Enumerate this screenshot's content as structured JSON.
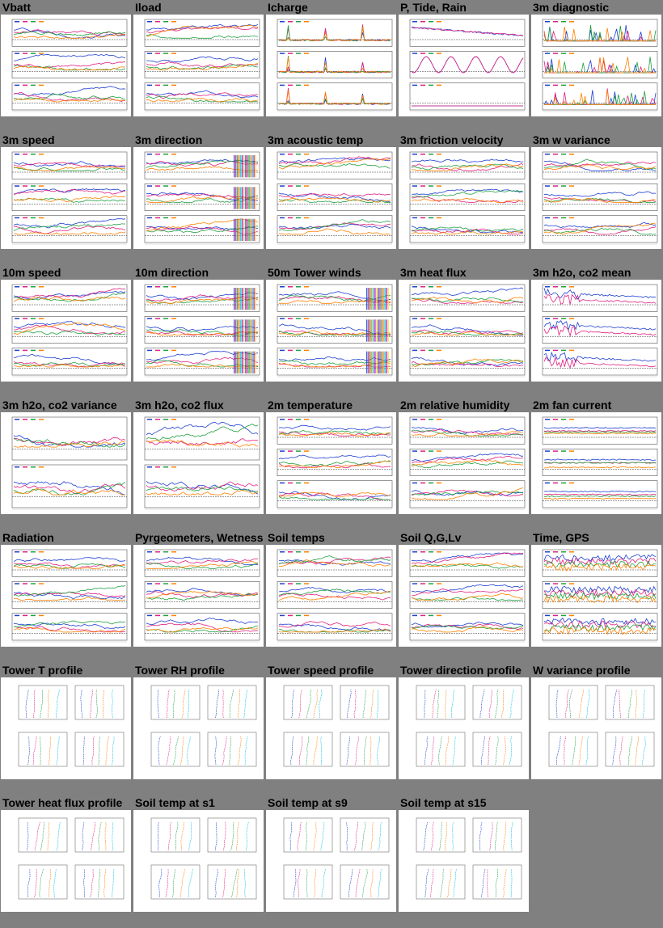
{
  "page": {
    "background_color": "#808080"
  },
  "tiles": [
    {
      "title": "Vbatt",
      "kind": "ts3",
      "icon": "voltage-plot-thumbnail"
    },
    {
      "title": "Iload",
      "kind": "ts3",
      "icon": "current-plot-thumbnail"
    },
    {
      "title": "Icharge",
      "kind": "ts3spike",
      "icon": "current-plot-thumbnail"
    },
    {
      "title": "P, Tide, Rain",
      "kind": "tide",
      "icon": "pressure-tide-rain-plot-thumbnail"
    },
    {
      "title": "3m diagnostic",
      "kind": "diag",
      "icon": "diagnostic-plot-thumbnail"
    },
    {
      "title": "3m speed",
      "kind": "ts3",
      "icon": "wind-speed-plot-thumbnail"
    },
    {
      "title": "3m direction",
      "kind": "dir",
      "icon": "wind-direction-plot-thumbnail"
    },
    {
      "title": "3m acoustic temp",
      "kind": "ts3",
      "icon": "temperature-plot-thumbnail"
    },
    {
      "title": "3m friction velocity",
      "kind": "ts3",
      "icon": "friction-velocity-plot-thumbnail"
    },
    {
      "title": "3m w variance",
      "kind": "ts3",
      "icon": "variance-plot-thumbnail"
    },
    {
      "title": "10m speed",
      "kind": "ts3",
      "icon": "wind-speed-plot-thumbnail"
    },
    {
      "title": "10m direction",
      "kind": "dir",
      "icon": "wind-direction-plot-thumbnail"
    },
    {
      "title": "50m Tower winds",
      "kind": "dir",
      "icon": "tower-winds-plot-thumbnail"
    },
    {
      "title": "3m heat flux",
      "kind": "ts3",
      "icon": "heat-flux-plot-thumbnail"
    },
    {
      "title": "3m h2o, co2 mean",
      "kind": "h2o",
      "icon": "h2o-co2-plot-thumbnail"
    },
    {
      "title": "3m h2o, co2 variance",
      "kind": "h2o2",
      "icon": "h2o-co2-variance-plot-thumbnail"
    },
    {
      "title": "3m h2o, co2 flux",
      "kind": "h2o2",
      "icon": "h2o-co2-flux-plot-thumbnail"
    },
    {
      "title": "2m temperature",
      "kind": "ts3",
      "icon": "temperature-plot-thumbnail"
    },
    {
      "title": "2m relative humidity",
      "kind": "ts3",
      "icon": "humidity-plot-thumbnail"
    },
    {
      "title": "2m fan current",
      "kind": "flat3",
      "icon": "fan-current-plot-thumbnail"
    },
    {
      "title": "Radiation",
      "kind": "ts3",
      "icon": "radiation-plot-thumbnail"
    },
    {
      "title": "Pyrgeometers, Wetness",
      "kind": "ts3",
      "icon": "pyrgeometer-plot-thumbnail"
    },
    {
      "title": "Soil temps",
      "kind": "ts3",
      "icon": "soil-temperature-plot-thumbnail"
    },
    {
      "title": "Soil Q,G,Lv",
      "kind": "ts3",
      "icon": "soil-moisture-plot-thumbnail"
    },
    {
      "title": "Time, GPS",
      "kind": "gps",
      "icon": "time-gps-plot-thumbnail"
    },
    {
      "title": "Tower T profile",
      "kind": "profile",
      "icon": "profile-plot-thumbnail"
    },
    {
      "title": "Tower RH profile",
      "kind": "profile",
      "icon": "profile-plot-thumbnail"
    },
    {
      "title": "Tower speed profile",
      "kind": "profile",
      "icon": "profile-plot-thumbnail"
    },
    {
      "title": "Tower direction profile",
      "kind": "profile",
      "icon": "profile-plot-thumbnail"
    },
    {
      "title": "W variance profile",
      "kind": "profile",
      "icon": "profile-plot-thumbnail"
    },
    {
      "title": "Tower heat flux profile",
      "kind": "profile",
      "icon": "profile-plot-thumbnail"
    },
    {
      "title": "Soil temp at s1",
      "kind": "profile",
      "icon": "profile-plot-thumbnail"
    },
    {
      "title": "Soil temp at s9",
      "kind": "profile",
      "icon": "profile-plot-thumbnail"
    },
    {
      "title": "Soil temp at s15",
      "kind": "profile",
      "icon": "profile-plot-thumbnail"
    }
  ],
  "series_colors": [
    "#1f3fd0",
    "#e0207f",
    "#20a040",
    "#ff8000",
    "#00c0e0",
    "#c000c0",
    "#f0e020"
  ]
}
